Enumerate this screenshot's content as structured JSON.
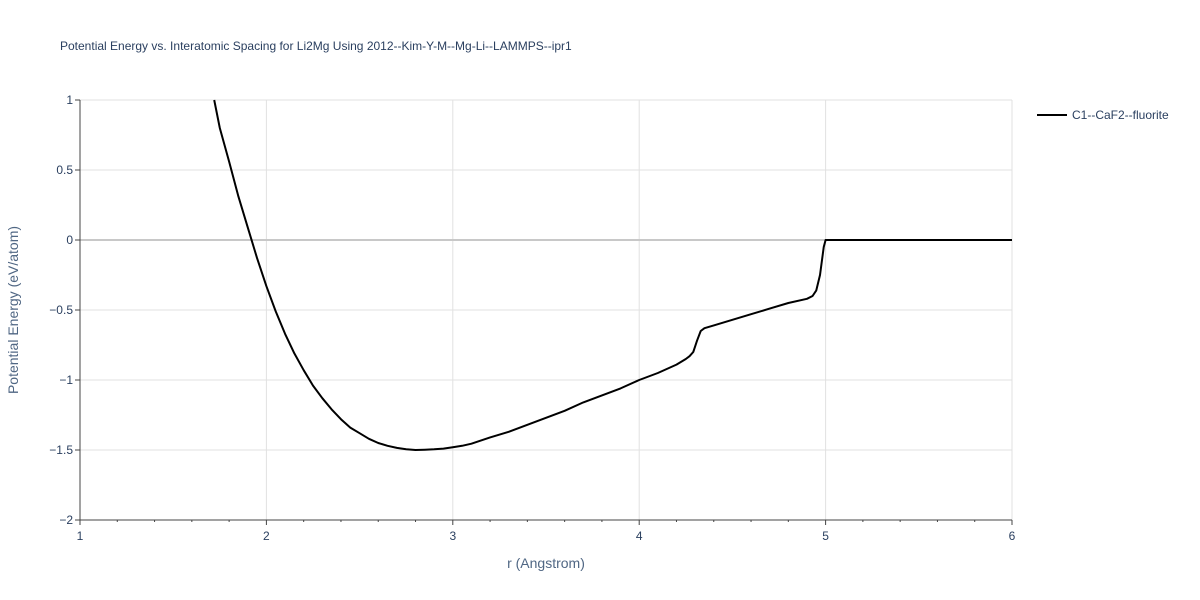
{
  "chart_data": {
    "type": "line",
    "title": "Potential Energy vs. Interatomic Spacing for Li2Mg Using 2012--Kim-Y-M--Mg-Li--LAMMPS--ipr1",
    "xlabel": "r (Angstrom)",
    "ylabel": "Potential Energy (eV/atom)",
    "xlim": [
      1,
      6
    ],
    "ylim": [
      -2,
      1
    ],
    "x_ticks": [
      1,
      2,
      3,
      4,
      5,
      6
    ],
    "x_tick_labels": [
      "1",
      "2",
      "3",
      "4",
      "5",
      "6"
    ],
    "y_ticks": [
      -2,
      -1.5,
      -1,
      -0.5,
      0,
      0.5,
      1
    ],
    "y_tick_labels": [
      "−2",
      "−1.5",
      "−1",
      "−0.5",
      "0",
      "0.5",
      "1"
    ],
    "grid": true,
    "legend_position": "top-right",
    "series": [
      {
        "name": "C1--CaF2--fluorite",
        "color": "#000000",
        "x": [
          1.72,
          1.75,
          1.8,
          1.85,
          1.9,
          1.95,
          2.0,
          2.05,
          2.1,
          2.15,
          2.2,
          2.25,
          2.3,
          2.35,
          2.4,
          2.45,
          2.5,
          2.55,
          2.6,
          2.65,
          2.7,
          2.75,
          2.8,
          2.85,
          2.9,
          2.95,
          3.0,
          3.05,
          3.1,
          3.2,
          3.3,
          3.4,
          3.5,
          3.6,
          3.7,
          3.8,
          3.9,
          4.0,
          4.1,
          4.2,
          4.25,
          4.27,
          4.29,
          4.3,
          4.31,
          4.33,
          4.35,
          4.4,
          4.5,
          4.6,
          4.7,
          4.8,
          4.9,
          4.93,
          4.95,
          4.97,
          4.99,
          5.0,
          5.2,
          5.4,
          5.6,
          5.8,
          6.0
        ],
        "y": [
          1.0,
          0.8,
          0.56,
          0.31,
          0.09,
          -0.13,
          -0.33,
          -0.51,
          -0.67,
          -0.81,
          -0.93,
          -1.04,
          -1.13,
          -1.21,
          -1.28,
          -1.34,
          -1.38,
          -1.42,
          -1.45,
          -1.47,
          -1.485,
          -1.495,
          -1.5,
          -1.498,
          -1.495,
          -1.49,
          -1.48,
          -1.47,
          -1.455,
          -1.41,
          -1.37,
          -1.32,
          -1.27,
          -1.22,
          -1.16,
          -1.11,
          -1.06,
          -1.0,
          -0.95,
          -0.89,
          -0.85,
          -0.83,
          -0.8,
          -0.76,
          -0.72,
          -0.65,
          -0.63,
          -0.61,
          -0.57,
          -0.53,
          -0.49,
          -0.45,
          -0.42,
          -0.4,
          -0.36,
          -0.25,
          -0.05,
          0.0,
          0.0,
          0.0,
          0.0,
          0.0,
          0.0
        ]
      }
    ]
  }
}
